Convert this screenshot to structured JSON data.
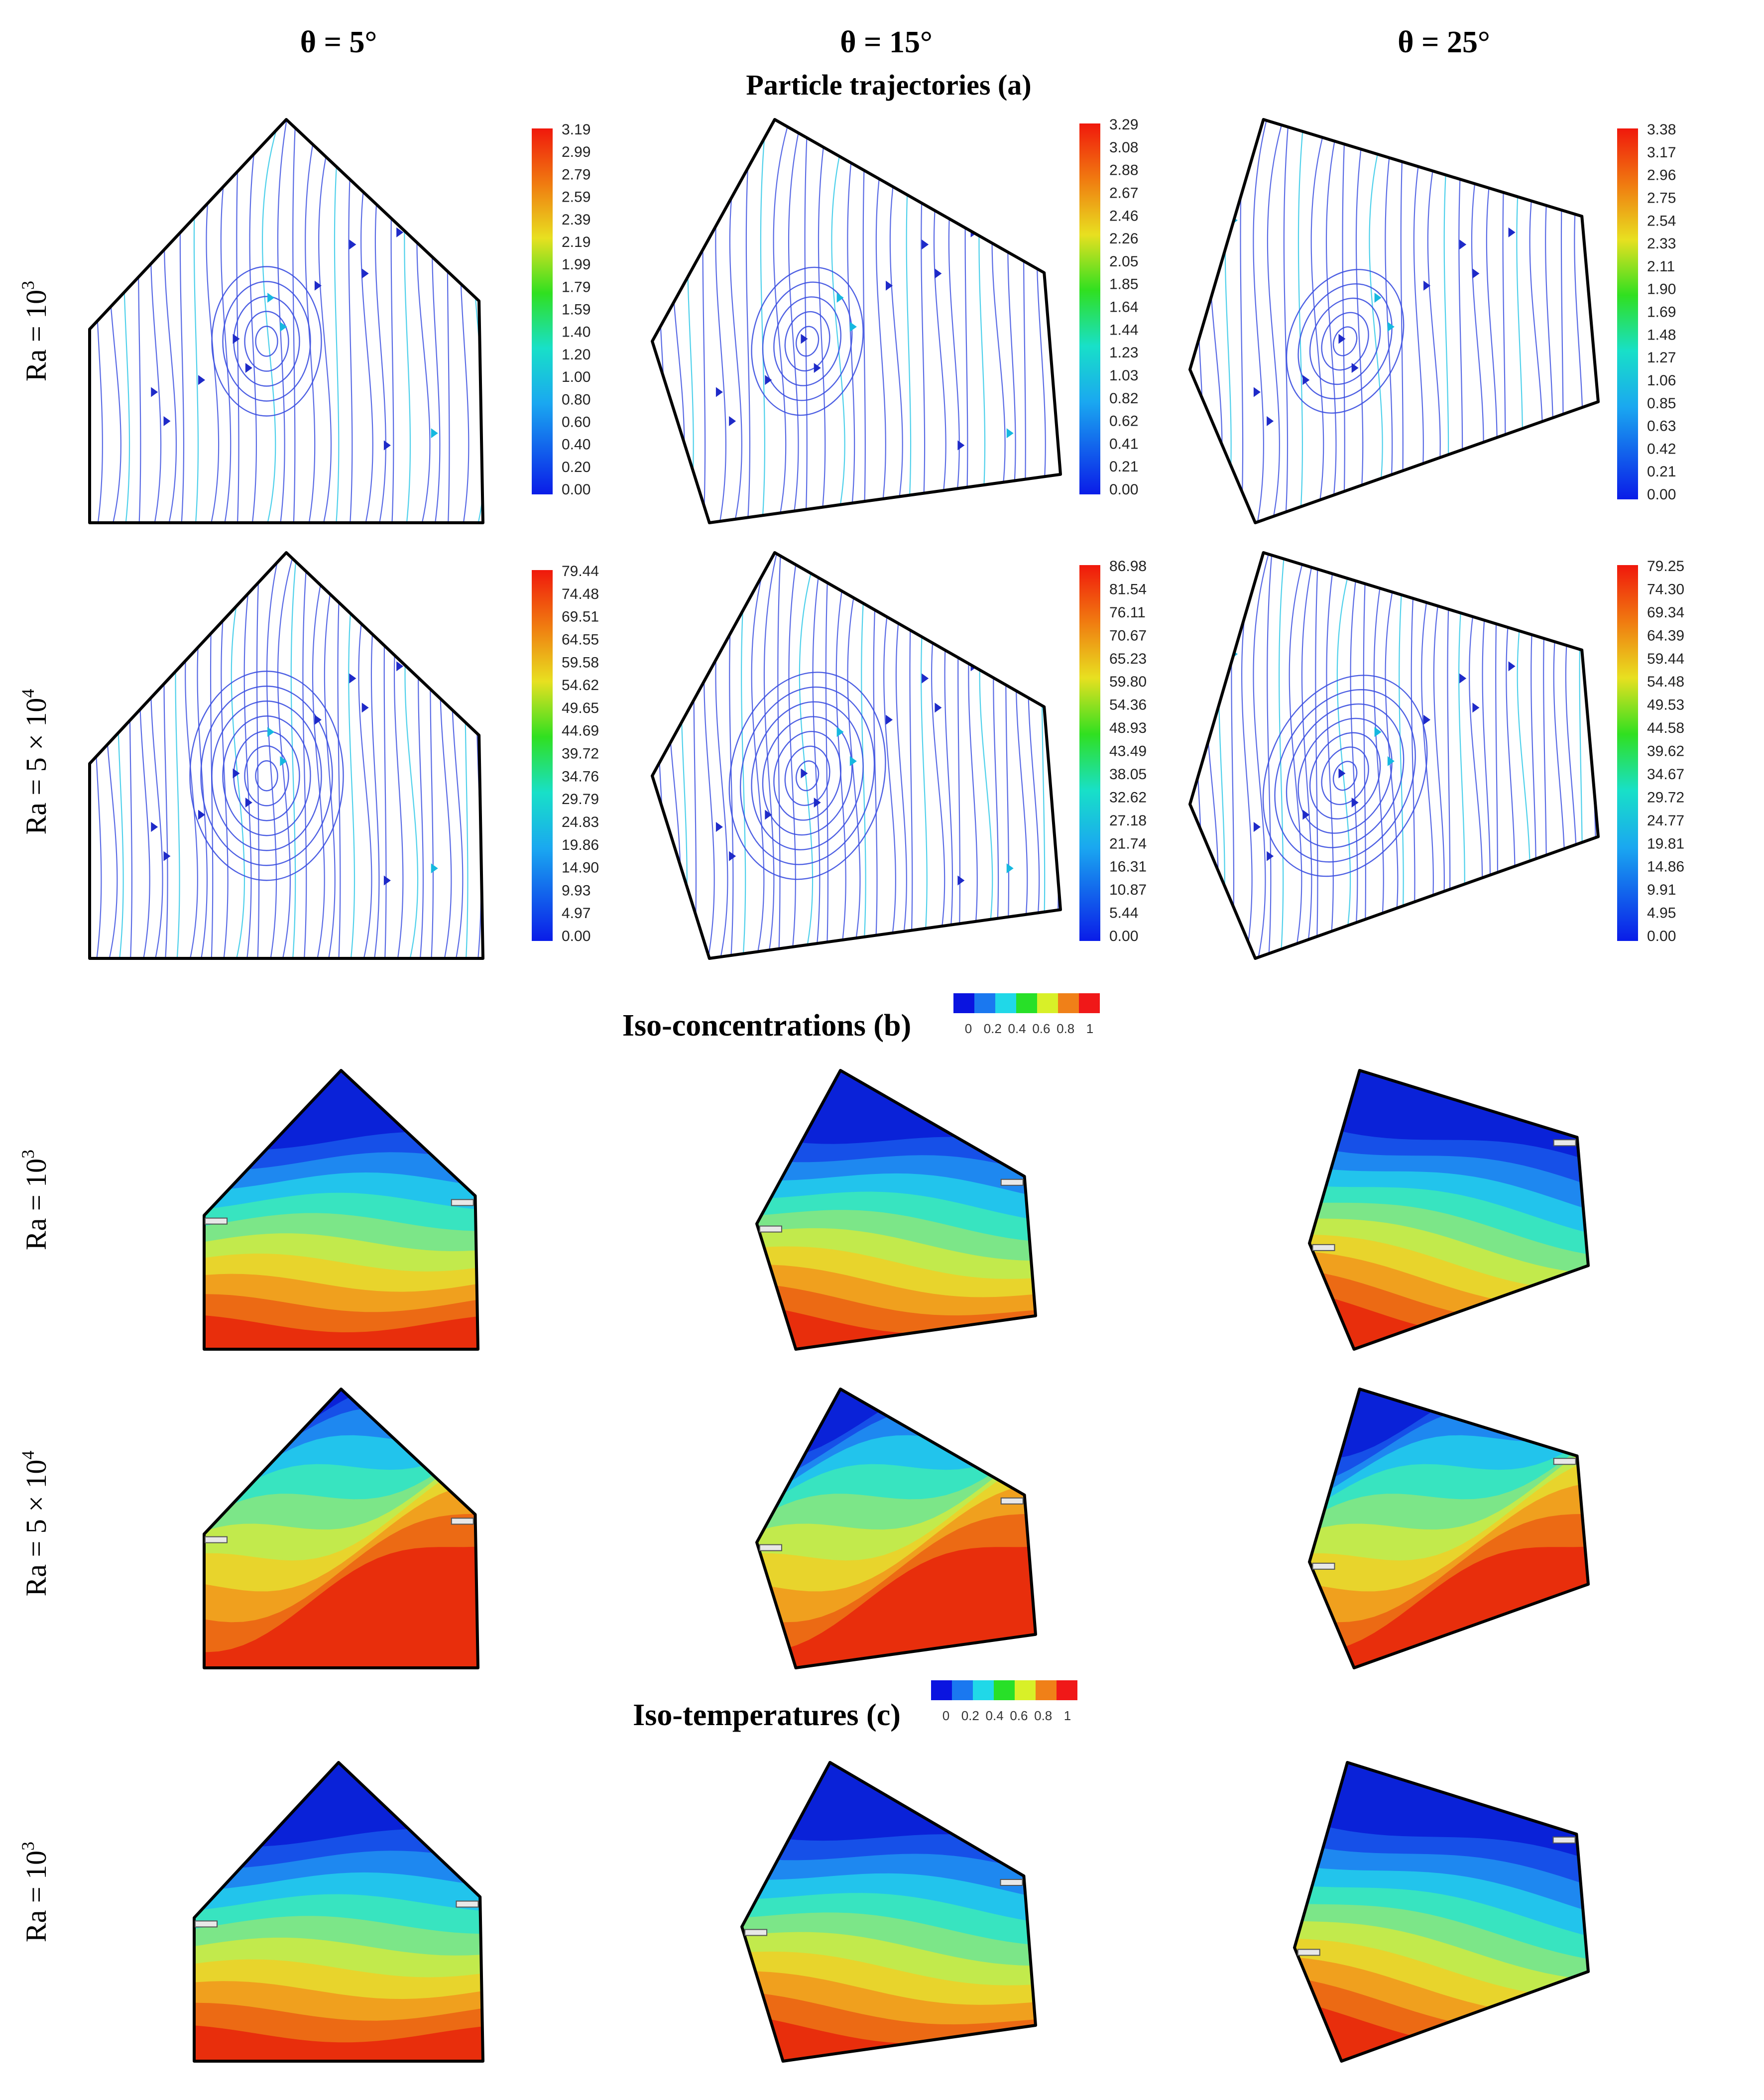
{
  "headers": {
    "columns": [
      "θ = 5°",
      "θ = 15°",
      "θ = 25°"
    ],
    "section_a": "Particle trajectories (a)",
    "section_b": "Iso-concentrations (b)",
    "section_c": "Iso-temperatures (c)"
  },
  "row_labels": {
    "ra_1e3": "Ra = 10",
    "ra_1e3_sup": "3",
    "ra_5e4": "Ra = 5 × 10",
    "ra_5e4_sup": "4"
  },
  "colorbars_trajectories": [
    [
      "3.19",
      "2.99",
      "2.79",
      "2.59",
      "2.39",
      "2.19",
      "1.99",
      "1.79",
      "1.59",
      "1.40",
      "1.20",
      "1.00",
      "0.80",
      "0.60",
      "0.40",
      "0.20",
      "0.00"
    ],
    [
      "3.29",
      "3.08",
      "2.88",
      "2.67",
      "2.46",
      "2.26",
      "2.05",
      "1.85",
      "1.64",
      "1.44",
      "1.23",
      "1.03",
      "0.82",
      "0.62",
      "0.41",
      "0.21",
      "0.00"
    ],
    [
      "3.38",
      "3.17",
      "2.96",
      "2.75",
      "2.54",
      "2.33",
      "2.11",
      "1.90",
      "1.69",
      "1.48",
      "1.27",
      "1.06",
      "0.85",
      "0.63",
      "0.42",
      "0.21",
      "0.00"
    ],
    [
      "79.44",
      "74.48",
      "69.51",
      "64.55",
      "59.58",
      "54.62",
      "49.65",
      "44.69",
      "39.72",
      "34.76",
      "29.79",
      "24.83",
      "19.86",
      "14.90",
      "9.93",
      "4.97",
      "0.00"
    ],
    [
      "86.98",
      "81.54",
      "76.11",
      "70.67",
      "65.23",
      "59.80",
      "54.36",
      "48.93",
      "43.49",
      "38.05",
      "32.62",
      "27.18",
      "21.74",
      "16.31",
      "10.87",
      "5.44",
      "0.00"
    ],
    [
      "79.25",
      "74.30",
      "69.34",
      "64.39",
      "59.44",
      "54.48",
      "49.53",
      "44.58",
      "39.62",
      "34.67",
      "29.72",
      "24.77",
      "19.81",
      "14.86",
      "9.91",
      "4.95",
      "0.00"
    ]
  ],
  "legend_ticks": [
    "0",
    "0.2",
    "0.4",
    "0.6",
    "0.8",
    "1"
  ],
  "colors": {
    "scale": [
      "#0a14e0",
      "#1a78f0",
      "#20d8e8",
      "#28e028",
      "#d8f028",
      "#f08018",
      "#f01818"
    ],
    "band": [
      "#0a22d8",
      "#1650e8",
      "#1e88f0",
      "#22c4ec",
      "#38e4c0",
      "#7ce688",
      "#c2ea4c",
      "#e8d42c",
      "#f0a01e",
      "#ec6a14",
      "#e82e0c"
    ],
    "stream": "#3b4fe0",
    "stream_fast": "#2ec8e8"
  }
}
